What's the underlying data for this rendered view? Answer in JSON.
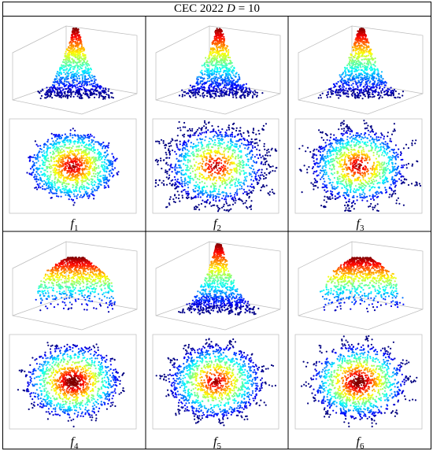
{
  "figure": {
    "title_prefix": "CEC 2022",
    "title_var": "D",
    "title_eq": "= 10"
  },
  "panels": [
    {
      "name": "f",
      "sub": "1",
      "shape": "cone",
      "peak": "sharp",
      "spread": 0.55,
      "spikes": 0.25
    },
    {
      "name": "f",
      "sub": "2",
      "shape": "cone",
      "peak": "sharp",
      "spread": 0.65,
      "spikes": 0.6
    },
    {
      "name": "f",
      "sub": "3",
      "shape": "cone",
      "peak": "sharp",
      "spread": 0.55,
      "spikes": 0.75
    },
    {
      "name": "f",
      "sub": "4",
      "shape": "dome",
      "peak": "flat",
      "spread": 0.6,
      "spikes": 0.35
    },
    {
      "name": "f",
      "sub": "5",
      "shape": "cone",
      "peak": "sharp",
      "spread": 0.6,
      "spikes": 0.4
    },
    {
      "name": "f",
      "sub": "6",
      "shape": "dome",
      "peak": "flat",
      "spread": 0.6,
      "spikes": 0.45
    }
  ]
}
